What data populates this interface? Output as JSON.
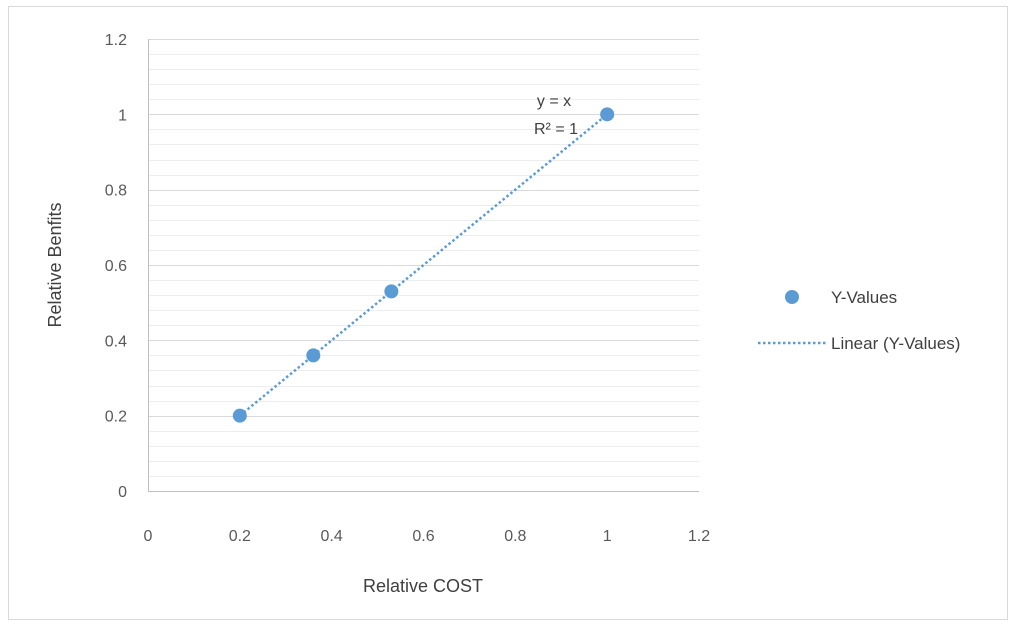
{
  "chart_data": {
    "type": "scatter",
    "title": "",
    "xlabel": "Relative COST",
    "ylabel": "Relative Benfits",
    "xlim": [
      0,
      1.2
    ],
    "ylim": [
      0,
      1.2
    ],
    "x_ticks": [
      "0",
      "0.2",
      "0.4",
      "0.6",
      "0.8",
      "1",
      "1.2"
    ],
    "y_ticks": [
      "0",
      "0.2",
      "0.4",
      "0.6",
      "0.8",
      "1",
      "1.2"
    ],
    "grid": "horizontal major and minor",
    "legend_position": "right",
    "series": [
      {
        "name": "Y-Values",
        "x": [
          0.2,
          0.36,
          0.53,
          1.0
        ],
        "y": [
          0.2,
          0.36,
          0.53,
          1.0
        ],
        "color": "#5b9bd5",
        "marker": "circle"
      }
    ],
    "trendline": {
      "name": "Linear (Y-Values)",
      "type": "linear",
      "style": "dotted",
      "color": "#5b9bd5",
      "x_range": [
        0.2,
        1.0
      ],
      "equation": "y = x",
      "r_squared": "R² = 1"
    }
  }
}
